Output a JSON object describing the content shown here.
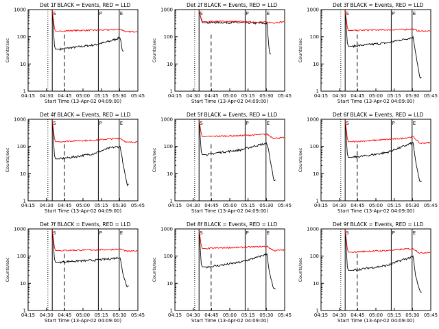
{
  "figure": {
    "background": "#ffffff",
    "colors": {
      "events": "#000000",
      "lld": "#ff0000",
      "axes": "#000000"
    }
  },
  "chart_data": [
    {
      "type": "line",
      "title": "Det 1f BLACK = Events, RED = LLD",
      "xlabel": "Start Time (13-Apr-02 04:09:00)",
      "ylabel": "Counts/sec",
      "yscale": "log",
      "ylim": [
        1,
        1000
      ],
      "x_ticks": [
        "04:15",
        "04:30",
        "04:45",
        "05:00",
        "05:15",
        "05:30",
        "05:45"
      ],
      "y_ticks": [
        "1",
        "10",
        "100",
        "1000"
      ],
      "markers": [
        "S",
        "P",
        "E"
      ],
      "series": [
        {
          "name": "Events",
          "color": "#000000",
          "values": [
            [
              0.29,
              35
            ],
            [
              0.4,
              40
            ],
            [
              0.6,
              50
            ],
            [
              0.75,
              70
            ],
            [
              0.84,
              95
            ],
            [
              0.86,
              28
            ]
          ]
        },
        {
          "name": "LLD",
          "color": "#ff0000",
          "values": [
            [
              0.29,
              160
            ],
            [
              0.4,
              170
            ],
            [
              0.6,
              175
            ],
            [
              0.75,
              180
            ],
            [
              0.84,
              190
            ],
            [
              0.9,
              150
            ],
            [
              1.0,
              160
            ]
          ]
        }
      ]
    },
    {
      "type": "line",
      "title": "Det 2f BLACK = Events, RED = LLD",
      "xlabel": "Start Time (13-Apr-02 04:09:00)",
      "ylabel": "Counts/sec",
      "yscale": "log",
      "ylim": [
        1,
        1000
      ],
      "x_ticks": [
        "04:15",
        "04:30",
        "04:45",
        "05:00",
        "05:15",
        "05:30",
        "05:45"
      ],
      "y_ticks": [
        "1",
        "10",
        "100",
        "1000"
      ],
      "markers": [
        "S",
        "P",
        "E"
      ],
      "series": [
        {
          "name": "Events",
          "color": "#000000",
          "values": [
            [
              0.29,
              330
            ],
            [
              0.4,
              340
            ],
            [
              0.6,
              330
            ],
            [
              0.75,
              320
            ],
            [
              0.84,
              310
            ],
            [
              0.86,
              25
            ]
          ]
        },
        {
          "name": "LLD",
          "color": "#ff0000",
          "values": [
            [
              0.29,
              360
            ],
            [
              0.4,
              370
            ],
            [
              0.6,
              360
            ],
            [
              0.75,
              350
            ],
            [
              0.84,
              340
            ],
            [
              0.9,
              330
            ],
            [
              1.0,
              360
            ]
          ]
        }
      ]
    },
    {
      "type": "line",
      "title": "Det 3f BLACK = Events, RED = LLD",
      "xlabel": "Start Time (13-Apr-02 04:09:00)",
      "ylabel": "Counts/sec",
      "yscale": "log",
      "ylim": [
        1,
        1000
      ],
      "x_ticks": [
        "04:15",
        "04:30",
        "04:45",
        "05:00",
        "05:15",
        "05:30",
        "05:45"
      ],
      "y_ticks": [
        "1",
        "10",
        "100",
        "1000"
      ],
      "markers": [
        "S",
        "P",
        "E"
      ],
      "series": [
        {
          "name": "Events",
          "color": "#000000",
          "values": [
            [
              0.29,
              45
            ],
            [
              0.4,
              50
            ],
            [
              0.6,
              60
            ],
            [
              0.75,
              80
            ],
            [
              0.84,
              95
            ],
            [
              0.86,
              30
            ],
            [
              0.9,
              3
            ]
          ]
        },
        {
          "name": "LLD",
          "color": "#ff0000",
          "values": [
            [
              0.29,
              170
            ],
            [
              0.4,
              175
            ],
            [
              0.6,
              180
            ],
            [
              0.75,
              185
            ],
            [
              0.84,
              190
            ],
            [
              0.9,
              160
            ],
            [
              1.0,
              165
            ]
          ]
        }
      ]
    },
    {
      "type": "line",
      "title": "Det 4f BLACK = Events, RED = LLD",
      "xlabel": "Start Time (13-Apr-02 04:09:00)",
      "ylabel": "Counts/sec",
      "yscale": "log",
      "ylim": [
        1,
        1000
      ],
      "x_ticks": [
        "04:15",
        "04:30",
        "04:45",
        "05:00",
        "05:15",
        "05:30",
        "05:45"
      ],
      "y_ticks": [
        "1",
        "10",
        "100",
        "1000"
      ],
      "markers": [
        "S",
        "P",
        "E"
      ],
      "series": [
        {
          "name": "Events",
          "color": "#000000",
          "values": [
            [
              0.29,
              35
            ],
            [
              0.4,
              40
            ],
            [
              0.6,
              55
            ],
            [
              0.75,
              90
            ],
            [
              0.84,
              100
            ],
            [
              0.86,
              30
            ],
            [
              0.9,
              4
            ]
          ]
        },
        {
          "name": "LLD",
          "color": "#ff0000",
          "values": [
            [
              0.29,
              150
            ],
            [
              0.4,
              160
            ],
            [
              0.6,
              170
            ],
            [
              0.75,
              190
            ],
            [
              0.84,
              200
            ],
            [
              0.9,
              140
            ],
            [
              1.0,
              150
            ]
          ]
        }
      ]
    },
    {
      "type": "line",
      "title": "Det 5f BLACK = Events, RED = LLD",
      "xlabel": "Start Time (13-Apr-02 04:09:00)",
      "ylabel": "Counts/sec",
      "yscale": "log",
      "ylim": [
        1,
        1000
      ],
      "x_ticks": [
        "04:15",
        "04:30",
        "04:45",
        "05:00",
        "05:15",
        "05:30",
        "05:45"
      ],
      "y_ticks": [
        "1",
        "10",
        "100",
        "1000"
      ],
      "markers": [
        "S",
        "P",
        "E"
      ],
      "series": [
        {
          "name": "Events",
          "color": "#000000",
          "values": [
            [
              0.29,
              50
            ],
            [
              0.4,
              60
            ],
            [
              0.6,
              75
            ],
            [
              0.75,
              110
            ],
            [
              0.84,
              130
            ],
            [
              0.86,
              50
            ],
            [
              0.9,
              6
            ]
          ]
        },
        {
          "name": "LLD",
          "color": "#ff0000",
          "values": [
            [
              0.29,
              230
            ],
            [
              0.4,
              240
            ],
            [
              0.6,
              250
            ],
            [
              0.75,
              270
            ],
            [
              0.84,
              280
            ],
            [
              0.9,
              200
            ],
            [
              1.0,
              210
            ]
          ]
        }
      ]
    },
    {
      "type": "line",
      "title": "Det 6f BLACK = Events, RED = LLD",
      "xlabel": "Start Time (13-Apr-02 04:09:00)",
      "ylabel": "Counts/sec",
      "yscale": "log",
      "ylim": [
        1,
        1000
      ],
      "x_ticks": [
        "04:15",
        "04:30",
        "04:45",
        "05:00",
        "05:15",
        "05:30",
        "05:45"
      ],
      "y_ticks": [
        "1",
        "10",
        "100",
        "1000"
      ],
      "markers": [
        "S",
        "P",
        "E"
      ],
      "series": [
        {
          "name": "Events",
          "color": "#000000",
          "values": [
            [
              0.29,
              40
            ],
            [
              0.4,
              45
            ],
            [
              0.6,
              60
            ],
            [
              0.75,
              100
            ],
            [
              0.84,
              140
            ],
            [
              0.86,
              30
            ],
            [
              0.9,
              5
            ]
          ]
        },
        {
          "name": "LLD",
          "color": "#ff0000",
          "values": [
            [
              0.29,
              150
            ],
            [
              0.4,
              160
            ],
            [
              0.6,
              180
            ],
            [
              0.75,
              200
            ],
            [
              0.84,
              230
            ],
            [
              0.9,
              130
            ],
            [
              1.0,
              140
            ]
          ]
        }
      ]
    },
    {
      "type": "line",
      "title": "Det 7f BLACK = Events, RED = LLD",
      "xlabel": "Start Time (13-Apr-02 04:09:00)",
      "ylabel": "Counts/sec",
      "yscale": "log",
      "ylim": [
        1,
        1000
      ],
      "x_ticks": [
        "04:15",
        "04:30",
        "04:45",
        "05:00",
        "05:15",
        "05:30",
        "05:45"
      ],
      "y_ticks": [
        "1",
        "10",
        "100",
        "1000"
      ],
      "markers": [
        "S",
        "P",
        "E"
      ],
      "series": [
        {
          "name": "Events",
          "color": "#000000",
          "values": [
            [
              0.29,
              60
            ],
            [
              0.4,
              65
            ],
            [
              0.6,
              70
            ],
            [
              0.75,
              80
            ],
            [
              0.84,
              90
            ],
            [
              0.86,
              25
            ],
            [
              0.9,
              8
            ]
          ]
        },
        {
          "name": "LLD",
          "color": "#ff0000",
          "values": [
            [
              0.29,
              160
            ],
            [
              0.4,
              165
            ],
            [
              0.6,
              170
            ],
            [
              0.75,
              175
            ],
            [
              0.84,
              180
            ],
            [
              0.9,
              150
            ],
            [
              1.0,
              155
            ]
          ]
        }
      ]
    },
    {
      "type": "line",
      "title": "Det 8f BLACK = Events, RED = LLD",
      "xlabel": "Start Time (13-Apr-02 04:09:00)",
      "ylabel": "Counts/sec",
      "yscale": "log",
      "ylim": [
        1,
        1000
      ],
      "x_ticks": [
        "04:15",
        "04:30",
        "04:45",
        "05:00",
        "05:15",
        "05:30",
        "05:45"
      ],
      "y_ticks": [
        "1",
        "10",
        "100",
        "1000"
      ],
      "markers": [
        "S",
        "P",
        "E"
      ],
      "series": [
        {
          "name": "Events",
          "color": "#000000",
          "values": [
            [
              0.29,
              40
            ],
            [
              0.4,
              45
            ],
            [
              0.6,
              60
            ],
            [
              0.75,
              90
            ],
            [
              0.84,
              120
            ],
            [
              0.86,
              25
            ],
            [
              0.9,
              6
            ]
          ]
        },
        {
          "name": "LLD",
          "color": "#ff0000",
          "values": [
            [
              0.29,
              190
            ],
            [
              0.4,
              200
            ],
            [
              0.6,
              210
            ],
            [
              0.75,
              220
            ],
            [
              0.84,
              230
            ],
            [
              0.9,
              160
            ],
            [
              1.0,
              170
            ]
          ]
        }
      ]
    },
    {
      "type": "line",
      "title": "Det 9f BLACK = Events, RED = LLD",
      "xlabel": "Start Time (13-Apr-02 04:09:00)",
      "ylabel": "Counts/sec",
      "yscale": "log",
      "ylim": [
        1,
        1000
      ],
      "x_ticks": [
        "04:15",
        "04:30",
        "04:45",
        "05:00",
        "05:15",
        "05:30",
        "05:45"
      ],
      "y_ticks": [
        "1",
        "10",
        "100",
        "1000"
      ],
      "markers": [
        "S",
        "P",
        "E"
      ],
      "series": [
        {
          "name": "Events",
          "color": "#000000",
          "values": [
            [
              0.29,
              30
            ],
            [
              0.4,
              35
            ],
            [
              0.6,
              45
            ],
            [
              0.75,
              75
            ],
            [
              0.84,
              95
            ],
            [
              0.86,
              20
            ],
            [
              0.9,
              5
            ]
          ]
        },
        {
          "name": "LLD",
          "color": "#ff0000",
          "values": [
            [
              0.29,
              140
            ],
            [
              0.4,
              150
            ],
            [
              0.6,
              160
            ],
            [
              0.75,
              180
            ],
            [
              0.84,
              190
            ],
            [
              0.9,
              130
            ],
            [
              1.0,
              140
            ]
          ]
        }
      ]
    }
  ]
}
